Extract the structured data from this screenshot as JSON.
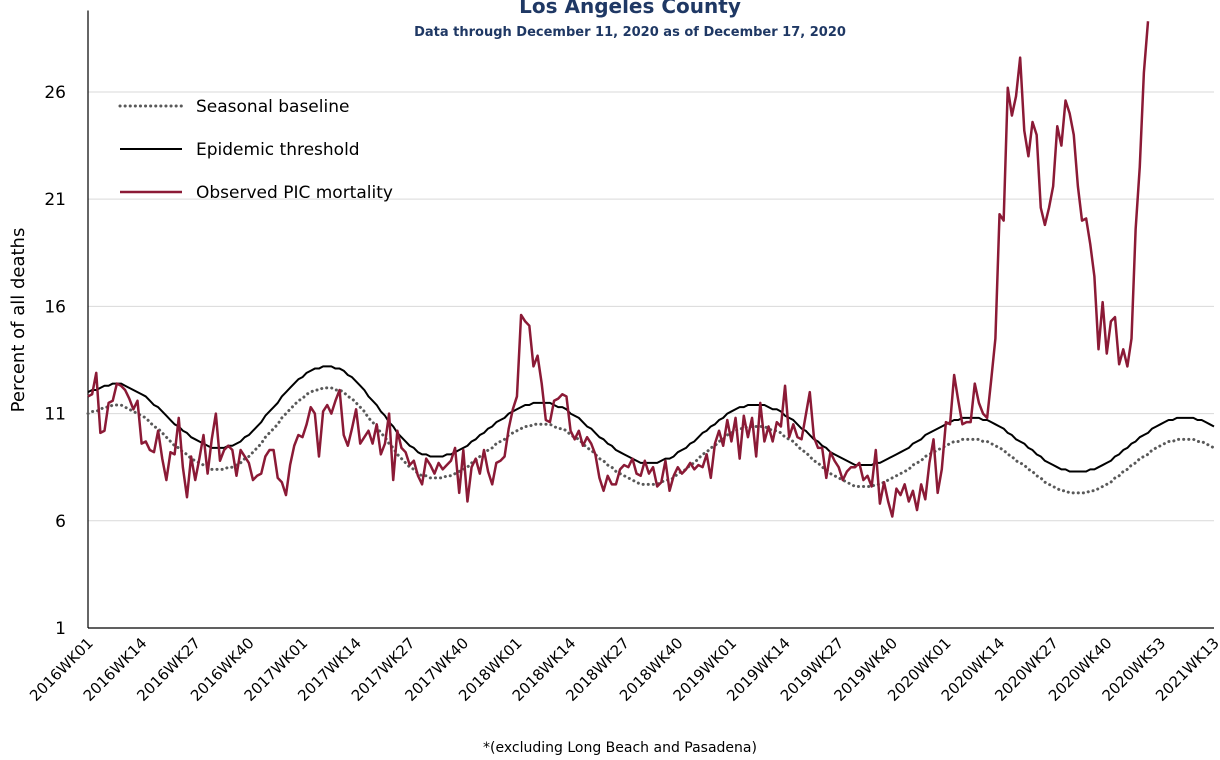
{
  "chart_data": {
    "type": "line",
    "title": "Los Angeles County",
    "subtitle": "Data through December 11, 2020 as of December 17, 2020",
    "y_label": "Percent of all deaths",
    "footnote": "*(excluding Long Beach and Pasadena)",
    "ylim": [
      1,
      29.8
    ],
    "yticks": [
      1,
      6,
      11,
      16,
      21,
      26
    ],
    "grid": true,
    "legend": "upper left",
    "categories": [
      "2016WK01",
      null,
      null,
      null,
      null,
      null,
      null,
      null,
      null,
      null,
      null,
      null,
      null,
      "2016WK14",
      null,
      null,
      null,
      null,
      null,
      null,
      null,
      null,
      null,
      null,
      null,
      null,
      "2016WK27",
      null,
      null,
      null,
      null,
      null,
      null,
      null,
      null,
      null,
      null,
      null,
      null,
      "2016WK40",
      null,
      null,
      null,
      null,
      null,
      null,
      null,
      null,
      null,
      null,
      null,
      null,
      "2017WK01",
      null,
      null,
      null,
      null,
      null,
      null,
      null,
      null,
      null,
      null,
      null,
      null,
      "2017WK14",
      null,
      null,
      null,
      null,
      null,
      null,
      null,
      null,
      null,
      null,
      null,
      null,
      "2017WK27",
      null,
      null,
      null,
      null,
      null,
      null,
      null,
      null,
      null,
      null,
      null,
      null,
      "2017WK40",
      null,
      null,
      null,
      null,
      null,
      null,
      null,
      null,
      null,
      null,
      null,
      null,
      "2018WK01",
      null,
      null,
      null,
      null,
      null,
      null,
      null,
      null,
      null,
      null,
      null,
      null,
      "2018WK14",
      null,
      null,
      null,
      null,
      null,
      null,
      null,
      null,
      null,
      null,
      null,
      null,
      "2018WK27",
      null,
      null,
      null,
      null,
      null,
      null,
      null,
      null,
      null,
      null,
      null,
      null,
      "2018WK40",
      null,
      null,
      null,
      null,
      null,
      null,
      null,
      null,
      null,
      null,
      null,
      null,
      "2019WK01",
      null,
      null,
      null,
      null,
      null,
      null,
      null,
      null,
      null,
      null,
      null,
      null,
      "2019WK14",
      null,
      null,
      null,
      null,
      null,
      null,
      null,
      null,
      null,
      null,
      null,
      null,
      "2019WK27",
      null,
      null,
      null,
      null,
      null,
      null,
      null,
      null,
      null,
      null,
      null,
      null,
      "2019WK40",
      null,
      null,
      null,
      null,
      null,
      null,
      null,
      null,
      null,
      null,
      null,
      null,
      "2020WK01",
      null,
      null,
      null,
      null,
      null,
      null,
      null,
      null,
      null,
      null,
      null,
      null,
      "2020WK14",
      null,
      null,
      null,
      null,
      null,
      null,
      null,
      null,
      null,
      null,
      null,
      null,
      "2020WK27",
      null,
      null,
      null,
      null,
      null,
      null,
      null,
      null,
      null,
      null,
      null,
      null,
      "2020WK40",
      null,
      null,
      null,
      null,
      null,
      null,
      null,
      null,
      null,
      null,
      null,
      null,
      "2020WK53",
      null,
      null,
      null,
      null,
      null,
      null,
      null,
      null,
      null,
      null,
      null,
      null,
      "2021WK13"
    ],
    "series": [
      {
        "name": "Seasonal baseline",
        "color": "#595959",
        "style": "dotted",
        "values": [
          11.0,
          11.1,
          11.1,
          11.2,
          11.3,
          11.3,
          11.4,
          11.4,
          11.4,
          11.3,
          11.2,
          11.1,
          11.0,
          10.9,
          10.8,
          10.6,
          10.4,
          10.3,
          10.1,
          9.9,
          9.7,
          9.5,
          9.4,
          9.2,
          9.1,
          8.9,
          8.8,
          8.7,
          8.6,
          8.5,
          8.4,
          8.4,
          8.4,
          8.4,
          8.5,
          8.5,
          8.6,
          8.7,
          8.9,
          9.0,
          9.2,
          9.4,
          9.6,
          9.9,
          10.1,
          10.3,
          10.5,
          10.8,
          11.0,
          11.2,
          11.4,
          11.6,
          11.7,
          11.9,
          12.0,
          12.1,
          12.1,
          12.2,
          12.2,
          12.2,
          12.1,
          12.1,
          12.0,
          11.8,
          11.7,
          11.5,
          11.3,
          11.1,
          10.8,
          10.6,
          10.4,
          10.1,
          9.9,
          9.6,
          9.4,
          9.1,
          8.9,
          8.7,
          8.5,
          8.4,
          8.2,
          8.1,
          8.1,
          8.0,
          8.0,
          8.0,
          8.0,
          8.1,
          8.1,
          8.2,
          8.3,
          8.4,
          8.5,
          8.7,
          8.8,
          9.0,
          9.1,
          9.3,
          9.4,
          9.6,
          9.7,
          9.8,
          10.0,
          10.1,
          10.2,
          10.3,
          10.4,
          10.4,
          10.5,
          10.5,
          10.5,
          10.5,
          10.5,
          10.4,
          10.3,
          10.3,
          10.2,
          10.0,
          9.9,
          9.8,
          9.6,
          9.4,
          9.3,
          9.1,
          8.9,
          8.8,
          8.6,
          8.5,
          8.3,
          8.2,
          8.1,
          8.0,
          7.9,
          7.8,
          7.7,
          7.7,
          7.7,
          7.7,
          7.7,
          7.8,
          7.9,
          7.9,
          8.0,
          8.2,
          8.3,
          8.4,
          8.6,
          8.7,
          8.9,
          9.1,
          9.2,
          9.4,
          9.5,
          9.7,
          9.8,
          10.0,
          10.1,
          10.2,
          10.3,
          10.3,
          10.4,
          10.4,
          10.4,
          10.4,
          10.4,
          10.3,
          10.2,
          10.2,
          10.1,
          9.9,
          9.8,
          9.7,
          9.5,
          9.3,
          9.2,
          9.0,
          8.8,
          8.7,
          8.5,
          8.4,
          8.2,
          8.1,
          8.0,
          7.9,
          7.8,
          7.7,
          7.6,
          7.6,
          7.6,
          7.6,
          7.6,
          7.7,
          7.7,
          7.8,
          7.9,
          8.0,
          8.1,
          8.2,
          8.3,
          8.4,
          8.6,
          8.7,
          8.8,
          9.0,
          9.1,
          9.2,
          9.3,
          9.4,
          9.5,
          9.6,
          9.7,
          9.7,
          9.8,
          9.8,
          9.8,
          9.8,
          9.8,
          9.7,
          9.7,
          9.6,
          9.5,
          9.4,
          9.3,
          9.1,
          9.0,
          8.8,
          8.7,
          8.6,
          8.4,
          8.3,
          8.1,
          8.0,
          7.8,
          7.7,
          7.6,
          7.5,
          7.4,
          7.4,
          7.3,
          7.3,
          7.3,
          7.3,
          7.3,
          7.4,
          7.4,
          7.5,
          7.6,
          7.7,
          7.8,
          8.0,
          8.1,
          8.3,
          8.4,
          8.6,
          8.7,
          8.9,
          9.0,
          9.1,
          9.3,
          9.4,
          9.5,
          9.6,
          9.7,
          9.7,
          9.8,
          9.8,
          9.8,
          9.8,
          9.8,
          9.7,
          9.7,
          9.6,
          9.5,
          9.4
        ]
      },
      {
        "name": "Epidemic threshold",
        "color": "#000000",
        "style": "solid",
        "values": [
          12.0,
          12.1,
          12.1,
          12.2,
          12.3,
          12.3,
          12.4,
          12.4,
          12.4,
          12.3,
          12.2,
          12.1,
          12.0,
          11.9,
          11.8,
          11.6,
          11.4,
          11.3,
          11.1,
          10.9,
          10.7,
          10.5,
          10.4,
          10.2,
          10.1,
          9.9,
          9.8,
          9.7,
          9.6,
          9.5,
          9.4,
          9.4,
          9.4,
          9.4,
          9.5,
          9.5,
          9.6,
          9.7,
          9.9,
          10.0,
          10.2,
          10.4,
          10.6,
          10.9,
          11.1,
          11.3,
          11.5,
          11.8,
          12.0,
          12.2,
          12.4,
          12.6,
          12.7,
          12.9,
          13.0,
          13.1,
          13.1,
          13.2,
          13.2,
          13.2,
          13.1,
          13.1,
          13.0,
          12.8,
          12.7,
          12.5,
          12.3,
          12.1,
          11.8,
          11.6,
          11.4,
          11.1,
          10.9,
          10.6,
          10.4,
          10.1,
          9.9,
          9.7,
          9.5,
          9.4,
          9.2,
          9.1,
          9.1,
          9.0,
          9.0,
          9.0,
          9.0,
          9.1,
          9.1,
          9.2,
          9.3,
          9.4,
          9.5,
          9.7,
          9.8,
          10.0,
          10.1,
          10.3,
          10.4,
          10.6,
          10.7,
          10.8,
          11.0,
          11.1,
          11.2,
          11.3,
          11.4,
          11.4,
          11.5,
          11.5,
          11.5,
          11.5,
          11.5,
          11.4,
          11.3,
          11.3,
          11.2,
          11.0,
          10.9,
          10.8,
          10.6,
          10.4,
          10.3,
          10.1,
          9.9,
          9.8,
          9.6,
          9.5,
          9.3,
          9.2,
          9.1,
          9.0,
          8.9,
          8.8,
          8.7,
          8.7,
          8.7,
          8.7,
          8.7,
          8.8,
          8.9,
          8.9,
          9.0,
          9.2,
          9.3,
          9.4,
          9.6,
          9.7,
          9.9,
          10.1,
          10.2,
          10.4,
          10.5,
          10.7,
          10.8,
          11.0,
          11.1,
          11.2,
          11.3,
          11.3,
          11.4,
          11.4,
          11.4,
          11.4,
          11.4,
          11.3,
          11.2,
          11.2,
          11.1,
          10.9,
          10.8,
          10.7,
          10.5,
          10.3,
          10.2,
          10.0,
          9.8,
          9.7,
          9.5,
          9.4,
          9.2,
          9.1,
          9.0,
          8.9,
          8.8,
          8.7,
          8.6,
          8.6,
          8.6,
          8.6,
          8.6,
          8.7,
          8.7,
          8.8,
          8.9,
          9.0,
          9.1,
          9.2,
          9.3,
          9.4,
          9.6,
          9.7,
          9.8,
          10.0,
          10.1,
          10.2,
          10.3,
          10.4,
          10.5,
          10.6,
          10.7,
          10.7,
          10.8,
          10.8,
          10.8,
          10.8,
          10.8,
          10.7,
          10.7,
          10.6,
          10.5,
          10.4,
          10.3,
          10.1,
          10.0,
          9.8,
          9.7,
          9.6,
          9.4,
          9.3,
          9.1,
          9.0,
          8.8,
          8.7,
          8.6,
          8.5,
          8.4,
          8.4,
          8.3,
          8.3,
          8.3,
          8.3,
          8.3,
          8.4,
          8.4,
          8.5,
          8.6,
          8.7,
          8.8,
          9.0,
          9.1,
          9.3,
          9.4,
          9.6,
          9.7,
          9.9,
          10.0,
          10.1,
          10.3,
          10.4,
          10.5,
          10.6,
          10.7,
          10.7,
          10.8,
          10.8,
          10.8,
          10.8,
          10.8,
          10.7,
          10.7,
          10.6,
          10.5,
          10.4
        ]
      },
      {
        "name": "Observed PIC mortality",
        "color": "#8b1a36",
        "style": "solid",
        "values": [
          11.8,
          11.9,
          12.9,
          10.1,
          10.2,
          11.5,
          11.6,
          12.4,
          12.3,
          12.1,
          11.7,
          11.2,
          11.6,
          9.6,
          9.7,
          9.3,
          9.2,
          10.2,
          8.9,
          7.9,
          9.2,
          9.1,
          10.8,
          8.5,
          7.1,
          9.0,
          7.9,
          8.9,
          10.0,
          8.2,
          9.8,
          11.0,
          8.8,
          9.3,
          9.5,
          9.3,
          8.1,
          9.3,
          9.0,
          8.7,
          7.9,
          8.1,
          8.2,
          9.0,
          9.3,
          9.3,
          8.0,
          7.8,
          7.2,
          8.6,
          9.5,
          10.0,
          9.9,
          10.5,
          11.3,
          11.0,
          9.0,
          11.1,
          11.4,
          11.0,
          11.6,
          12.1,
          10.0,
          9.5,
          10.3,
          11.2,
          9.6,
          9.9,
          10.2,
          9.6,
          10.5,
          9.1,
          9.6,
          11.0,
          7.9,
          10.2,
          9.4,
          9.2,
          8.6,
          8.8,
          8.1,
          7.7,
          8.9,
          8.6,
          8.2,
          8.7,
          8.4,
          8.6,
          8.8,
          9.4,
          7.3,
          9.3,
          6.9,
          8.5,
          8.9,
          8.2,
          9.3,
          8.3,
          7.7,
          8.7,
          8.8,
          9.0,
          10.3,
          11.2,
          11.8,
          15.6,
          15.3,
          15.1,
          13.2,
          13.7,
          12.4,
          10.7,
          10.6,
          11.6,
          11.7,
          11.9,
          11.8,
          10.2,
          9.8,
          10.2,
          9.5,
          9.9,
          9.6,
          9.1,
          8.0,
          7.4,
          8.1,
          7.7,
          7.7,
          8.4,
          8.6,
          8.5,
          8.9,
          8.2,
          8.1,
          8.8,
          8.2,
          8.5,
          7.6,
          7.8,
          8.8,
          7.4,
          8.1,
          8.5,
          8.2,
          8.4,
          8.7,
          8.4,
          8.6,
          8.5,
          9.1,
          8.0,
          9.6,
          10.2,
          9.5,
          10.7,
          9.7,
          10.8,
          8.9,
          10.9,
          9.9,
          10.8,
          9.0,
          11.5,
          9.7,
          10.4,
          9.7,
          10.6,
          10.4,
          12.3,
          9.9,
          10.5,
          9.9,
          9.8,
          10.9,
          12.0,
          9.9,
          9.4,
          9.4,
          8.0,
          9.2,
          8.8,
          8.5,
          7.9,
          8.3,
          8.5,
          8.5,
          8.7,
          7.9,
          8.1,
          7.6,
          9.3,
          6.8,
          7.8,
          6.9,
          6.2,
          7.5,
          7.2,
          7.7,
          6.9,
          7.4,
          6.5,
          7.7,
          7.0,
          8.7,
          9.8,
          7.3,
          8.4,
          10.6,
          10.5,
          12.8,
          11.6,
          10.5,
          10.6,
          10.6,
          12.4,
          11.5,
          11.0,
          10.8,
          12.6,
          14.5,
          20.3,
          20.0,
          26.2,
          24.9,
          25.8,
          27.6,
          24.2,
          23.0,
          24.6,
          24.0,
          20.6,
          19.8,
          20.6,
          21.6,
          24.4,
          23.5,
          25.6,
          25.0,
          24.0,
          21.6,
          20.0,
          20.1,
          18.9,
          17.4,
          14.0,
          16.2,
          13.8,
          15.3,
          15.5,
          13.3,
          14.0,
          13.2,
          14.5,
          19.6,
          22.5,
          26.9,
          29.3,
          null,
          null,
          null,
          null,
          null,
          null,
          null,
          null,
          null,
          null,
          null,
          null,
          null,
          null,
          null,
          null
        ]
      }
    ]
  }
}
